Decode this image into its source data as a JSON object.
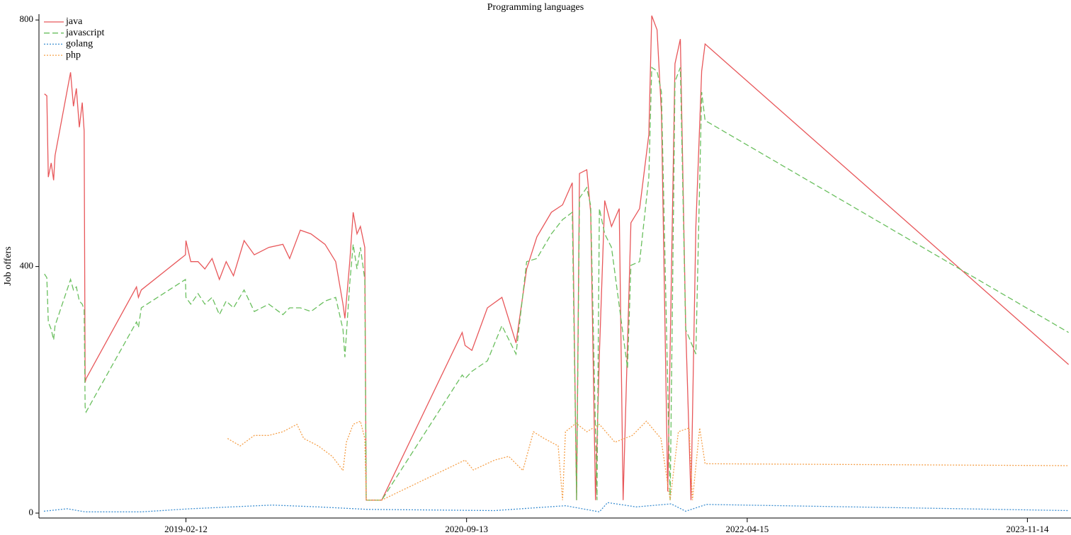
{
  "chart_data": {
    "type": "line",
    "title": "Programming languages",
    "y_label": "Job offers",
    "xlim": [
      "2018-04-25",
      "2024-02-12"
    ],
    "xticks": [
      "2019-02-12",
      "2020-09-13",
      "2022-04-15",
      "2023-11-14"
    ],
    "ylim": [
      -8,
      810
    ],
    "yticks": [
      0,
      400,
      800
    ],
    "legend": "upper left",
    "series": [
      {
        "name": "java",
        "color": "#e8575a",
        "linestyle": "solid",
        "x": [
          "2018-04-26",
          "2018-05-01",
          "2018-05-04",
          "2018-05-10",
          "2018-05-15",
          "2018-05-18",
          "2018-06-19",
          "2018-06-25",
          "2018-07-01",
          "2018-07-07",
          "2018-07-13",
          "2018-07-17",
          "2018-07-19",
          "2018-07-21",
          "2018-11-02",
          "2018-11-06",
          "2018-11-12",
          "2019-02-11",
          "2019-02-12",
          "2019-02-22",
          "2019-03-09",
          "2019-03-23",
          "2019-04-07",
          "2019-04-22",
          "2019-05-06",
          "2019-05-21",
          "2019-06-12",
          "2019-07-03",
          "2019-08-02",
          "2019-08-31",
          "2019-09-14",
          "2019-10-06",
          "2019-10-28",
          "2019-11-26",
          "2019-12-18",
          "2020-01-02",
          "2020-01-06",
          "2020-01-16",
          "2020-01-23",
          "2020-01-31",
          "2020-02-07",
          "2020-02-16",
          "2020-02-19",
          "2020-03-22",
          "2020-09-04",
          "2020-09-10",
          "2020-09-24",
          "2020-10-26",
          "2020-11-25",
          "2020-12-24",
          "2021-01-15",
          "2021-02-05",
          "2021-03-07",
          "2021-03-30",
          "2021-04-19",
          "2021-04-28",
          "2021-05-04",
          "2021-05-19",
          "2021-05-27",
          "2021-06-06",
          "2021-06-14",
          "2021-06-25",
          "2021-07-09",
          "2021-07-25",
          "2021-08-02",
          "2021-08-18",
          "2021-09-05",
          "2021-09-24",
          "2021-09-30",
          "2021-10-11",
          "2021-10-20",
          "2021-11-02",
          "2021-11-17",
          "2021-11-28",
          "2021-12-09",
          "2021-12-20",
          "2021-12-30",
          "2022-01-11",
          "2022-01-18",
          "2024-02-07"
        ],
        "values": [
          680,
          677,
          545,
          568,
          540,
          580,
          715,
          660,
          689,
          626,
          666,
          620,
          212,
          218,
          367,
          350,
          362,
          419,
          442,
          408,
          408,
          396,
          413,
          379,
          408,
          385,
          442,
          419,
          431,
          436,
          413,
          459,
          453,
          436,
          408,
          339,
          316,
          408,
          488,
          453,
          465,
          431,
          21,
          21,
          293,
          272,
          264,
          333,
          350,
          276,
          396,
          448,
          488,
          500,
          536,
          21,
          551,
          557,
          488,
          21,
          258,
          507,
          465,
          494,
          21,
          471,
          494,
          614,
          807,
          784,
          649,
          35,
          729,
          769,
          304,
          21,
          465,
          717,
          761,
          241
        ]
      },
      {
        "name": "javascript",
        "color": "#6abf5e",
        "linestyle": "dashed",
        "x": [
          "2018-04-26",
          "2018-05-01",
          "2018-05-04",
          "2018-05-10",
          "2018-05-15",
          "2018-05-18",
          "2018-06-19",
          "2018-06-25",
          "2018-07-01",
          "2018-07-07",
          "2018-07-13",
          "2018-07-17",
          "2018-07-19",
          "2018-07-21",
          "2018-11-02",
          "2018-11-06",
          "2018-11-12",
          "2019-02-11",
          "2019-02-12",
          "2019-02-22",
          "2019-03-09",
          "2019-03-23",
          "2019-04-07",
          "2019-04-22",
          "2019-05-06",
          "2019-05-21",
          "2019-06-12",
          "2019-07-03",
          "2019-08-02",
          "2019-08-31",
          "2019-09-14",
          "2019-10-06",
          "2019-10-28",
          "2019-11-26",
          "2019-12-18",
          "2020-01-02",
          "2020-01-06",
          "2020-01-16",
          "2020-01-23",
          "2020-01-31",
          "2020-02-07",
          "2020-02-16",
          "2020-02-19",
          "2020-03-22",
          "2020-09-04",
          "2020-09-10",
          "2020-09-24",
          "2020-10-26",
          "2020-11-25",
          "2020-12-24",
          "2021-01-15",
          "2021-02-05",
          "2021-03-07",
          "2021-03-30",
          "2021-04-19",
          "2021-04-28",
          "2021-05-04",
          "2021-05-19",
          "2021-05-27",
          "2021-06-09",
          "2021-06-14",
          "2021-06-25",
          "2021-07-09",
          "2021-08-11",
          "2021-08-18",
          "2021-09-05",
          "2021-09-24",
          "2021-09-30",
          "2021-10-11",
          "2021-10-20",
          "2021-11-07",
          "2021-11-17",
          "2021-11-28",
          "2021-12-09",
          "2021-12-30",
          "2022-01-11",
          "2022-01-18",
          "2024-02-07"
        ],
        "values": [
          388,
          382,
          310,
          298,
          281,
          304,
          379,
          362,
          367,
          344,
          339,
          330,
          172,
          164,
          310,
          301,
          333,
          379,
          350,
          339,
          356,
          339,
          350,
          322,
          344,
          333,
          362,
          327,
          339,
          322,
          333,
          333,
          327,
          344,
          350,
          298,
          253,
          373,
          436,
          396,
          431,
          379,
          21,
          21,
          224,
          218,
          230,
          247,
          304,
          258,
          408,
          413,
          453,
          476,
          488,
          21,
          511,
          528,
          499,
          21,
          494,
          453,
          431,
          235,
          402,
          408,
          545,
          723,
          717,
          683,
          21,
          700,
          723,
          298,
          258,
          683,
          637,
          293
        ]
      },
      {
        "name": "golang",
        "color": "#3d8fd1",
        "linestyle": "dotted",
        "x": [
          "2018-04-25",
          "2018-06-12",
          "2018-07-19",
          "2018-11-12",
          "2019-02-22",
          "2019-08-09",
          "2019-11-12",
          "2020-02-22",
          "2020-11-10",
          "2021-04-05",
          "2021-06-14",
          "2021-07-01",
          "2021-08-29",
          "2021-11-09",
          "2021-12-09",
          "2022-01-21",
          "2024-02-07"
        ],
        "values": [
          3,
          7,
          2,
          2,
          7,
          13,
          10,
          6,
          4,
          12,
          2,
          17,
          10,
          15,
          3,
          14,
          4
        ]
      },
      {
        "name": "php",
        "color": "#f5a04a",
        "linestyle": "dotted",
        "x": [
          "2019-05-09",
          "2019-06-04",
          "2019-07-03",
          "2019-08-02",
          "2019-08-31",
          "2019-09-29",
          "2019-10-13",
          "2019-11-12",
          "2019-12-11",
          "2020-01-02",
          "2020-01-09",
          "2020-01-23",
          "2020-02-07",
          "2020-02-16",
          "2020-02-19",
          "2020-03-22",
          "2020-09-10",
          "2020-09-27",
          "2020-11-10",
          "2020-12-09",
          "2021-01-07",
          "2021-01-29",
          "2021-02-20",
          "2021-03-21",
          "2021-03-30",
          "2021-04-05",
          "2021-04-27",
          "2021-05-19",
          "2021-06-14",
          "2021-07-16",
          "2021-08-21",
          "2021-09-19",
          "2021-10-19",
          "2021-11-07",
          "2021-11-24",
          "2021-12-16",
          "2021-12-23",
          "2022-01-07",
          "2022-01-18",
          "2024-02-07"
        ],
        "values": [
          121,
          109,
          126,
          126,
          132,
          144,
          121,
          109,
          92,
          69,
          115,
          144,
          149,
          121,
          21,
          21,
          86,
          70,
          86,
          92,
          69,
          132,
          121,
          109,
          21,
          132,
          146,
          132,
          144,
          115,
          126,
          149,
          121,
          21,
          132,
          138,
          21,
          138,
          80,
          77
        ]
      }
    ]
  }
}
